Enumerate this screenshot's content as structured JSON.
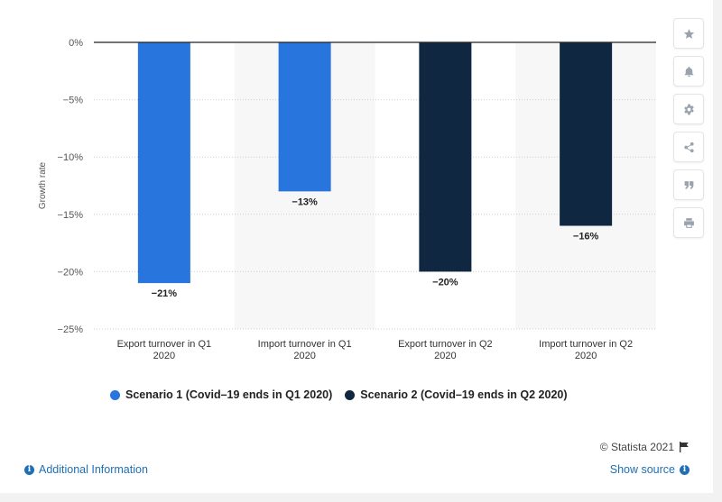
{
  "chart_data": {
    "type": "bar",
    "categories": [
      [
        "Export turnover in Q1",
        "2020"
      ],
      [
        "Import turnover in Q1",
        "2020"
      ],
      [
        "Export turnover in Q2",
        "2020"
      ],
      [
        "Import turnover in Q2",
        "2020"
      ]
    ],
    "values": [
      -21,
      -13,
      -20,
      -16
    ],
    "value_labels": [
      "−21%",
      "−13%",
      "−20%",
      "−16%"
    ],
    "bar_series": [
      0,
      0,
      1,
      1
    ],
    "series": [
      {
        "name": "Scenario 1 (Covid-19 ends in Q1 2020)",
        "color": "#2876dd"
      },
      {
        "name": "Scenario 2 (Covid-19 ends in Q2 2020)",
        "color": "#0f2740"
      }
    ],
    "ylabel": "Growth rate",
    "xlabel": "",
    "ylim": [
      -25,
      0
    ],
    "yticks": [
      0,
      -5,
      -10,
      -15,
      -20,
      -25
    ],
    "ytick_labels": [
      "0%",
      "−5%",
      "−10%",
      "−15%",
      "−20%",
      "−25%"
    ],
    "grid": true,
    "legend_position": "bottom-left"
  },
  "legend": {
    "s1_label": "Scenario 1 (Covid–19 ends in Q1 2020)",
    "s2_label": "Scenario 2 (Covid–19 ends in Q2 2020)"
  },
  "toolbar": {
    "icons": [
      "star-icon",
      "bell-icon",
      "gear-icon",
      "share-icon",
      "quote-icon",
      "print-icon"
    ]
  },
  "footer": {
    "credit": "© Statista 2021",
    "additional_info": "Additional Information",
    "show_source": "Show source"
  },
  "colors": {
    "accent_link": "#1f6fb5",
    "series1": "#2876dd",
    "series2": "#0f2740"
  }
}
